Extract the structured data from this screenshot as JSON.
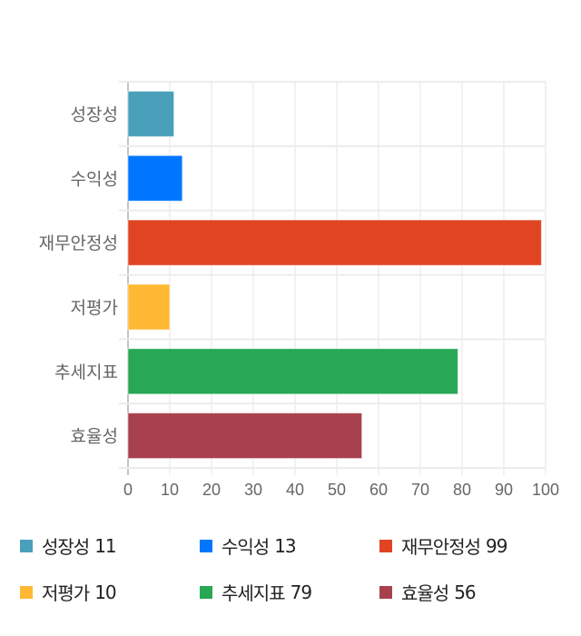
{
  "chart_data": {
    "type": "bar",
    "orientation": "horizontal",
    "categories": [
      "성장성",
      "수익성",
      "재무안정성",
      "저평가",
      "추세지표",
      "효율성"
    ],
    "values": [
      11,
      13,
      99,
      10,
      79,
      56
    ],
    "colors": [
      "#4aa0ba",
      "#0076ff",
      "#e04422",
      "#ffb833",
      "#28a755",
      "#a8404e"
    ],
    "xlim": [
      0,
      100
    ],
    "xticks": [
      0,
      10,
      20,
      30,
      40,
      50,
      60,
      70,
      80,
      90,
      100
    ],
    "grid": true,
    "legend_placement": "bottom"
  }
}
